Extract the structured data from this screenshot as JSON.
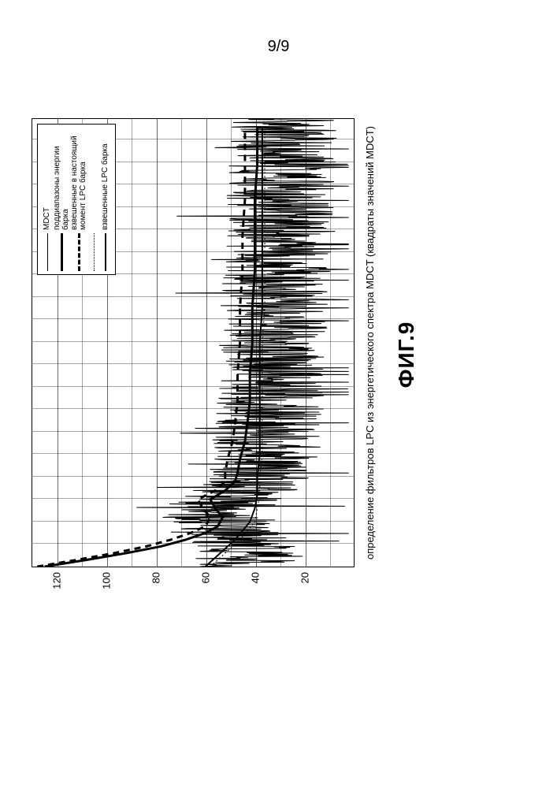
{
  "page_number": "9/9",
  "figure_label": "ФИГ.9",
  "title": "определение фильтров LPC из энергетического спектра MDCT (квадраты значений MDCT)",
  "background_color": "#ffffff",
  "plot": {
    "type": "line",
    "border_color": "#000000",
    "grid_color": "#000000",
    "ylim": [
      0,
      130
    ],
    "ytick_step": 20,
    "ytick_labels": [
      "20",
      "40",
      "60",
      "80",
      "100",
      "120"
    ],
    "ytick_values": [
      20,
      40,
      60,
      80,
      100,
      120
    ],
    "xlim": [
      0,
      1000
    ],
    "x_grid_count": 20,
    "legend": {
      "border_color": "#000000",
      "background_color": "#ffffff",
      "items": [
        {
          "label": "MDCT",
          "style": "mdct",
          "color": "#000000",
          "line_width": 1,
          "dash": "solid"
        },
        {
          "label": "поддиапазоны энергии барка",
          "style": "bark",
          "color": "#000000",
          "line_width": 3,
          "dash": "solid"
        },
        {
          "label": "взвешенные в настоящий момент LPC барка",
          "style": "wcur",
          "color": "#000000",
          "line_width": 3,
          "dash": "dashed"
        },
        {
          "label": "",
          "style": "lpc",
          "color": "#000000",
          "line_width": 1,
          "dash": "dotted"
        },
        {
          "label": "взвешенные LPC барка",
          "style": "wlpc",
          "color": "#000000",
          "line_width": 2,
          "dash": "solid"
        }
      ]
    },
    "series": {
      "bark_envelope": {
        "color": "#000000",
        "line_width": 3,
        "dash": "solid",
        "points": [
          [
            0,
            125
          ],
          [
            15,
            108
          ],
          [
            30,
            92
          ],
          [
            45,
            78
          ],
          [
            60,
            68
          ],
          [
            75,
            60
          ],
          [
            90,
            55
          ],
          [
            110,
            53
          ],
          [
            130,
            56
          ],
          [
            150,
            58
          ],
          [
            170,
            52
          ],
          [
            190,
            48
          ],
          [
            210,
            47
          ],
          [
            240,
            46
          ],
          [
            280,
            44
          ],
          [
            320,
            43
          ],
          [
            370,
            42
          ],
          [
            430,
            42
          ],
          [
            500,
            41
          ],
          [
            580,
            41
          ],
          [
            660,
            40
          ],
          [
            740,
            40
          ],
          [
            820,
            40
          ],
          [
            900,
            39
          ],
          [
            980,
            39
          ]
        ]
      },
      "weighted_current_lpc": {
        "color": "#000000",
        "line_width": 3,
        "dash": "8,6",
        "points": [
          [
            0,
            128
          ],
          [
            15,
            112
          ],
          [
            30,
            97
          ],
          [
            45,
            84
          ],
          [
            60,
            74
          ],
          [
            75,
            66
          ],
          [
            90,
            60
          ],
          [
            110,
            58
          ],
          [
            130,
            61
          ],
          [
            150,
            63
          ],
          [
            170,
            56
          ],
          [
            190,
            52
          ],
          [
            210,
            52
          ],
          [
            240,
            51
          ],
          [
            280,
            49
          ],
          [
            320,
            48
          ],
          [
            370,
            47
          ],
          [
            430,
            47
          ],
          [
            500,
            46
          ],
          [
            580,
            46
          ],
          [
            660,
            45
          ],
          [
            740,
            45
          ],
          [
            820,
            44
          ],
          [
            900,
            44
          ],
          [
            980,
            44
          ]
        ]
      },
      "weighted_lpc_bark": {
        "color": "#000000",
        "line_width": 2,
        "dash": "solid",
        "points": [
          [
            0,
            60
          ],
          [
            20,
            56
          ],
          [
            40,
            52
          ],
          [
            60,
            48
          ],
          [
            80,
            45
          ],
          [
            100,
            42
          ],
          [
            130,
            40
          ],
          [
            160,
            39
          ],
          [
            200,
            39
          ],
          [
            250,
            38
          ],
          [
            300,
            38
          ],
          [
            350,
            38
          ],
          [
            420,
            38
          ],
          [
            500,
            38
          ],
          [
            580,
            37
          ],
          [
            660,
            37
          ],
          [
            740,
            37
          ],
          [
            820,
            37
          ],
          [
            900,
            37
          ],
          [
            980,
            37
          ]
        ]
      },
      "lpc_bark": {
        "color": "#000000",
        "line_width": 1,
        "dash": "2,3",
        "points": [
          [
            0,
            58
          ],
          [
            20,
            54
          ],
          [
            40,
            50
          ],
          [
            60,
            46
          ],
          [
            80,
            43
          ],
          [
            100,
            40
          ],
          [
            130,
            39
          ],
          [
            160,
            38
          ],
          [
            200,
            38
          ],
          [
            250,
            37
          ],
          [
            300,
            37
          ],
          [
            350,
            37
          ],
          [
            420,
            37
          ],
          [
            500,
            37
          ],
          [
            580,
            36
          ],
          [
            660,
            36
          ],
          [
            740,
            36
          ],
          [
            820,
            36
          ],
          [
            900,
            36
          ],
          [
            980,
            36
          ]
        ]
      },
      "mdct_noise": {
        "color": "#000000",
        "line_width": 1,
        "dash": "solid",
        "center_curve": [
          [
            0,
            45
          ],
          [
            30,
            44
          ],
          [
            60,
            46
          ],
          [
            90,
            50
          ],
          [
            120,
            58
          ],
          [
            150,
            50
          ],
          [
            180,
            40
          ],
          [
            210,
            38
          ],
          [
            250,
            36
          ],
          [
            300,
            35
          ],
          [
            350,
            34
          ],
          [
            400,
            34
          ],
          [
            450,
            33
          ],
          [
            500,
            33
          ],
          [
            550,
            32
          ],
          [
            600,
            32
          ],
          [
            650,
            31
          ],
          [
            700,
            31
          ],
          [
            750,
            30
          ],
          [
            800,
            30
          ],
          [
            850,
            29
          ],
          [
            900,
            29
          ],
          [
            950,
            28
          ],
          [
            1000,
            28
          ]
        ],
        "amplitude": 22,
        "samples": 1000
      }
    }
  }
}
